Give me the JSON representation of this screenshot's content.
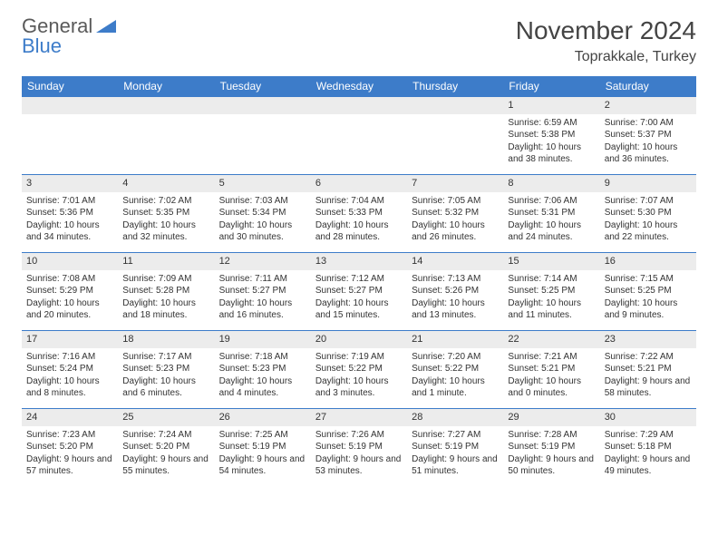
{
  "logo": {
    "text1": "General",
    "text2": "Blue"
  },
  "title": "November 2024",
  "location": "Toprakkale, Turkey",
  "colors": {
    "header_bg": "#3d7cc9",
    "header_fg": "#ffffff",
    "daynum_bg": "#ececec",
    "border": "#3d7cc9",
    "text": "#333333",
    "logo_gray": "#5a5a5a",
    "logo_blue": "#3d7cc9"
  },
  "weekdays": [
    "Sunday",
    "Monday",
    "Tuesday",
    "Wednesday",
    "Thursday",
    "Friday",
    "Saturday"
  ],
  "weeks": [
    [
      null,
      null,
      null,
      null,
      null,
      {
        "n": "1",
        "sr": "Sunrise: 6:59 AM",
        "ss": "Sunset: 5:38 PM",
        "dl": "Daylight: 10 hours and 38 minutes."
      },
      {
        "n": "2",
        "sr": "Sunrise: 7:00 AM",
        "ss": "Sunset: 5:37 PM",
        "dl": "Daylight: 10 hours and 36 minutes."
      }
    ],
    [
      {
        "n": "3",
        "sr": "Sunrise: 7:01 AM",
        "ss": "Sunset: 5:36 PM",
        "dl": "Daylight: 10 hours and 34 minutes."
      },
      {
        "n": "4",
        "sr": "Sunrise: 7:02 AM",
        "ss": "Sunset: 5:35 PM",
        "dl": "Daylight: 10 hours and 32 minutes."
      },
      {
        "n": "5",
        "sr": "Sunrise: 7:03 AM",
        "ss": "Sunset: 5:34 PM",
        "dl": "Daylight: 10 hours and 30 minutes."
      },
      {
        "n": "6",
        "sr": "Sunrise: 7:04 AM",
        "ss": "Sunset: 5:33 PM",
        "dl": "Daylight: 10 hours and 28 minutes."
      },
      {
        "n": "7",
        "sr": "Sunrise: 7:05 AM",
        "ss": "Sunset: 5:32 PM",
        "dl": "Daylight: 10 hours and 26 minutes."
      },
      {
        "n": "8",
        "sr": "Sunrise: 7:06 AM",
        "ss": "Sunset: 5:31 PM",
        "dl": "Daylight: 10 hours and 24 minutes."
      },
      {
        "n": "9",
        "sr": "Sunrise: 7:07 AM",
        "ss": "Sunset: 5:30 PM",
        "dl": "Daylight: 10 hours and 22 minutes."
      }
    ],
    [
      {
        "n": "10",
        "sr": "Sunrise: 7:08 AM",
        "ss": "Sunset: 5:29 PM",
        "dl": "Daylight: 10 hours and 20 minutes."
      },
      {
        "n": "11",
        "sr": "Sunrise: 7:09 AM",
        "ss": "Sunset: 5:28 PM",
        "dl": "Daylight: 10 hours and 18 minutes."
      },
      {
        "n": "12",
        "sr": "Sunrise: 7:11 AM",
        "ss": "Sunset: 5:27 PM",
        "dl": "Daylight: 10 hours and 16 minutes."
      },
      {
        "n": "13",
        "sr": "Sunrise: 7:12 AM",
        "ss": "Sunset: 5:27 PM",
        "dl": "Daylight: 10 hours and 15 minutes."
      },
      {
        "n": "14",
        "sr": "Sunrise: 7:13 AM",
        "ss": "Sunset: 5:26 PM",
        "dl": "Daylight: 10 hours and 13 minutes."
      },
      {
        "n": "15",
        "sr": "Sunrise: 7:14 AM",
        "ss": "Sunset: 5:25 PM",
        "dl": "Daylight: 10 hours and 11 minutes."
      },
      {
        "n": "16",
        "sr": "Sunrise: 7:15 AM",
        "ss": "Sunset: 5:25 PM",
        "dl": "Daylight: 10 hours and 9 minutes."
      }
    ],
    [
      {
        "n": "17",
        "sr": "Sunrise: 7:16 AM",
        "ss": "Sunset: 5:24 PM",
        "dl": "Daylight: 10 hours and 8 minutes."
      },
      {
        "n": "18",
        "sr": "Sunrise: 7:17 AM",
        "ss": "Sunset: 5:23 PM",
        "dl": "Daylight: 10 hours and 6 minutes."
      },
      {
        "n": "19",
        "sr": "Sunrise: 7:18 AM",
        "ss": "Sunset: 5:23 PM",
        "dl": "Daylight: 10 hours and 4 minutes."
      },
      {
        "n": "20",
        "sr": "Sunrise: 7:19 AM",
        "ss": "Sunset: 5:22 PM",
        "dl": "Daylight: 10 hours and 3 minutes."
      },
      {
        "n": "21",
        "sr": "Sunrise: 7:20 AM",
        "ss": "Sunset: 5:22 PM",
        "dl": "Daylight: 10 hours and 1 minute."
      },
      {
        "n": "22",
        "sr": "Sunrise: 7:21 AM",
        "ss": "Sunset: 5:21 PM",
        "dl": "Daylight: 10 hours and 0 minutes."
      },
      {
        "n": "23",
        "sr": "Sunrise: 7:22 AM",
        "ss": "Sunset: 5:21 PM",
        "dl": "Daylight: 9 hours and 58 minutes."
      }
    ],
    [
      {
        "n": "24",
        "sr": "Sunrise: 7:23 AM",
        "ss": "Sunset: 5:20 PM",
        "dl": "Daylight: 9 hours and 57 minutes."
      },
      {
        "n": "25",
        "sr": "Sunrise: 7:24 AM",
        "ss": "Sunset: 5:20 PM",
        "dl": "Daylight: 9 hours and 55 minutes."
      },
      {
        "n": "26",
        "sr": "Sunrise: 7:25 AM",
        "ss": "Sunset: 5:19 PM",
        "dl": "Daylight: 9 hours and 54 minutes."
      },
      {
        "n": "27",
        "sr": "Sunrise: 7:26 AM",
        "ss": "Sunset: 5:19 PM",
        "dl": "Daylight: 9 hours and 53 minutes."
      },
      {
        "n": "28",
        "sr": "Sunrise: 7:27 AM",
        "ss": "Sunset: 5:19 PM",
        "dl": "Daylight: 9 hours and 51 minutes."
      },
      {
        "n": "29",
        "sr": "Sunrise: 7:28 AM",
        "ss": "Sunset: 5:19 PM",
        "dl": "Daylight: 9 hours and 50 minutes."
      },
      {
        "n": "30",
        "sr": "Sunrise: 7:29 AM",
        "ss": "Sunset: 5:18 PM",
        "dl": "Daylight: 9 hours and 49 minutes."
      }
    ]
  ]
}
